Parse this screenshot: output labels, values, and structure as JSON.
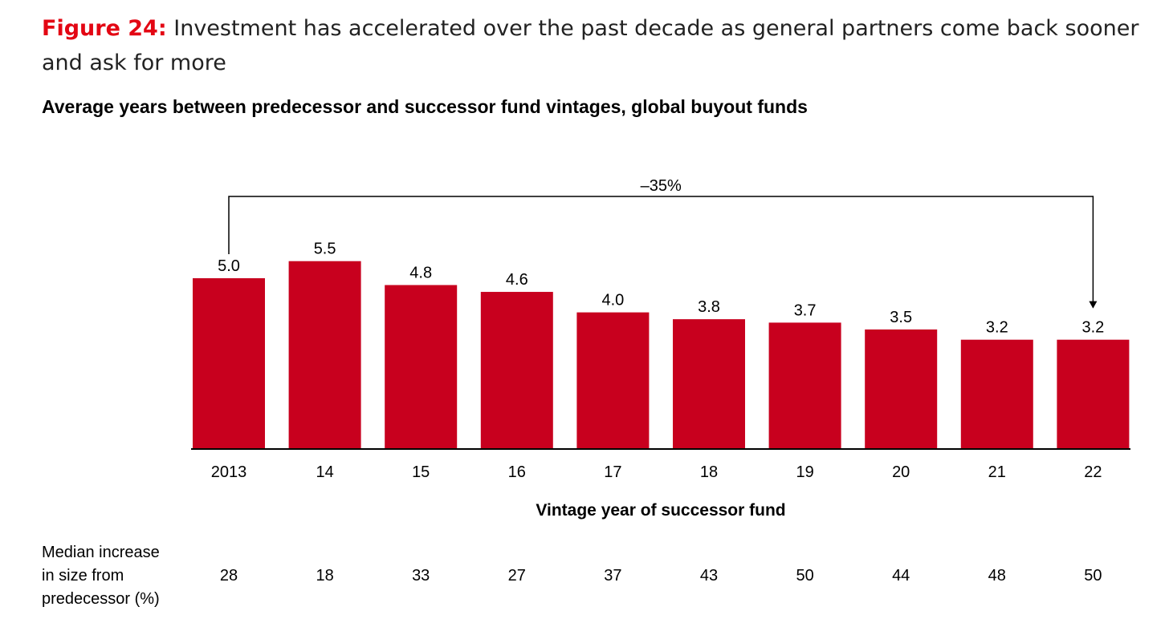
{
  "figure": {
    "label": "Figure 24:",
    "caption": " Investment has accelerated over the past decade as general partners come back sooner and ask for more"
  },
  "chart_data": {
    "type": "bar",
    "title": "Average years between predecessor and successor fund vintages, global buyout funds",
    "xlabel": "Vintage year of successor fund",
    "ylabel": "",
    "categories": [
      "2013",
      "14",
      "15",
      "16",
      "17",
      "18",
      "19",
      "20",
      "21",
      "22"
    ],
    "values": [
      5.0,
      5.5,
      4.8,
      4.6,
      4.0,
      3.8,
      3.7,
      3.5,
      3.2,
      3.2
    ],
    "value_labels": [
      "5.0",
      "5.5",
      "4.8",
      "4.6",
      "4.0",
      "3.8",
      "3.7",
      "3.5",
      "3.2",
      "3.2"
    ],
    "bar_color": "#c8001e",
    "grid": false,
    "legend": "none",
    "annotation": {
      "text": "–35%",
      "from_category": "2013",
      "to_category": "22"
    },
    "secondary_row": {
      "label": "Median increase in size from predecessor (%)",
      "label_lines": [
        "Median increase",
        "in size from",
        "predecessor (%)"
      ],
      "values": [
        "28",
        "18",
        "33",
        "27",
        "37",
        "43",
        "50",
        "44",
        "48",
        "50"
      ]
    }
  }
}
